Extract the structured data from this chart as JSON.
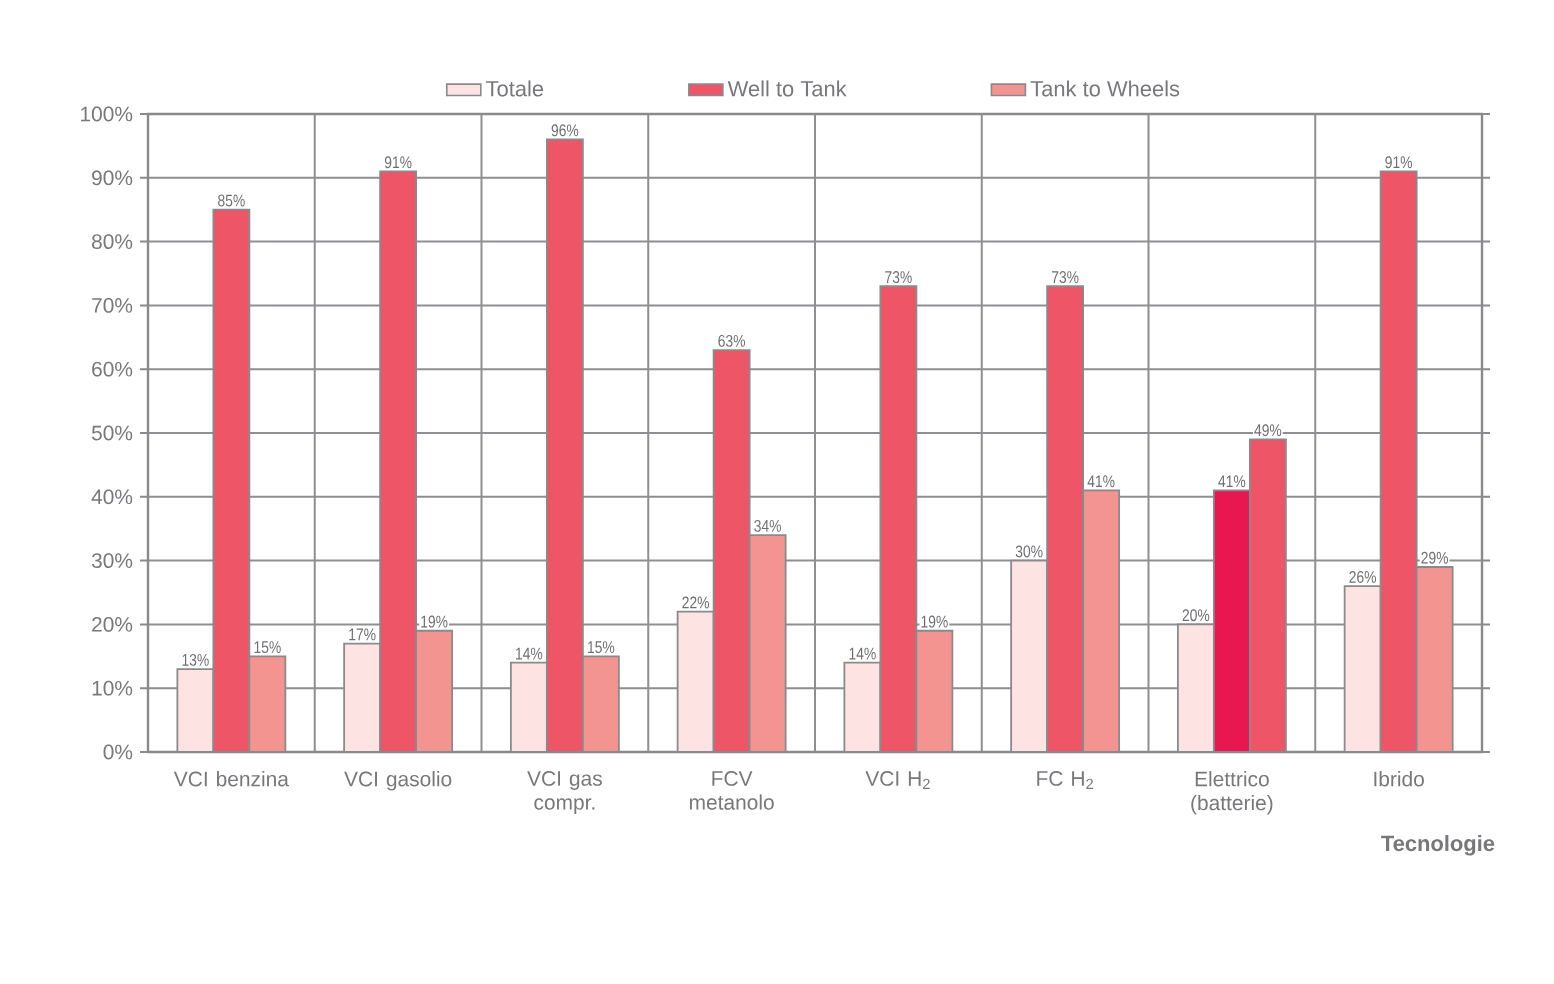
{
  "chart_data": {
    "type": "bar",
    "categories": [
      "VCI benzina",
      "VCI gasolio",
      "VCI gas compr.",
      "FCV metanolo",
      "VCI H$_{2}$",
      "FC H$_{2}$",
      "Elettrico (batterie)",
      "Ibrido"
    ],
    "series": [
      {
        "name": "Totale",
        "color": "#fde4e3",
        "values": [
          13,
          17,
          14,
          22,
          14,
          30,
          20,
          26
        ],
        "value_labels": [
          "13%",
          "17%",
          "14%",
          "22%",
          "14%",
          "30%",
          "20%",
          "26%"
        ]
      },
      {
        "name": "Well to Tank",
        "color": "#ee5566",
        "colors": [
          "#ee5566",
          "#ee5566",
          "#ee5566",
          "#ee5566",
          "#ee5566",
          "#ee5566",
          "#e8174f",
          "#ee5566"
        ],
        "values": [
          85,
          91,
          96,
          63,
          73,
          73,
          41,
          91
        ],
        "value_labels": [
          "85%",
          "91%",
          "96%",
          "63%",
          "73%",
          "73%",
          "41%",
          "91%"
        ]
      },
      {
        "name": "Tank to Wheels",
        "color": "#f49490",
        "colors": [
          "#f49490",
          "#f49490",
          "#f49490",
          "#f49490",
          "#f49490",
          "#f49490",
          "#ee5566",
          "#f49490"
        ],
        "values": [
          15,
          19,
          15,
          34,
          19,
          41,
          49,
          29
        ],
        "value_labels": [
          "15%",
          "19%",
          "15%",
          "34%",
          "19%",
          "41%",
          "49%",
          "29%"
        ]
      }
    ],
    "xlabel": "Tecnologie",
    "ylim": [
      0,
      100
    ],
    "yticks": [
      {
        "value": 0,
        "label": "0%"
      },
      {
        "value": 10,
        "label": "10%"
      },
      {
        "value": 20,
        "label": "20%"
      },
      {
        "value": 30,
        "label": "30%"
      },
      {
        "value": 40,
        "label": "40%"
      },
      {
        "value": 50,
        "label": "50%"
      },
      {
        "value": 60,
        "label": "60%"
      },
      {
        "value": 70,
        "label": "70%"
      },
      {
        "value": 80,
        "label": "80%"
      },
      {
        "value": 90,
        "label": "90%"
      },
      {
        "value": 100,
        "label": "100%"
      }
    ],
    "grid": true,
    "legend": "top"
  }
}
